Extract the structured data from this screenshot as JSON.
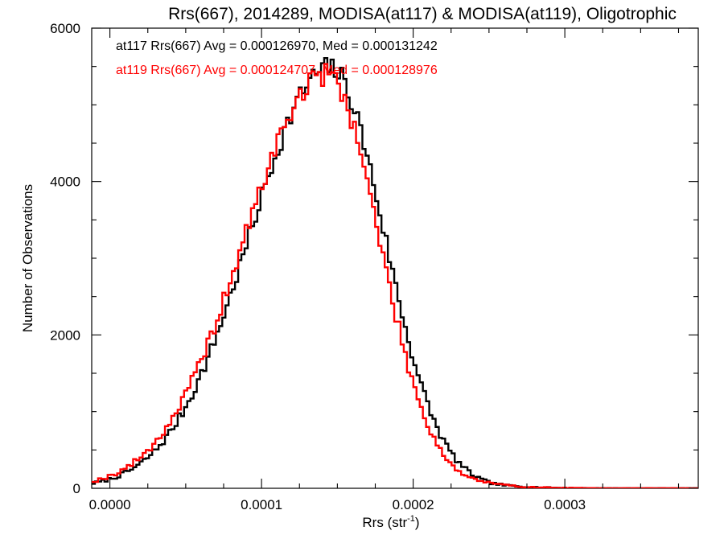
{
  "chart_data": {
    "type": "histogram",
    "title": "Rrs(667), 2014289, MODISA(at117) & MODISA(at119), Oligotrophic",
    "xlabel_main": "Rrs (str",
    "xlabel_sup": "-1",
    "xlabel_end": ")",
    "ylabel": "Number of Observations",
    "xlim": [
      -1.2e-05,
      0.000388
    ],
    "ylim": [
      0,
      6000
    ],
    "x_ticks": [
      0.0,
      0.0001,
      0.0002,
      0.0003
    ],
    "x_tick_labels": [
      "0.0000",
      "0.0001",
      "0.0002",
      "0.0003"
    ],
    "y_ticks": [
      0,
      2000,
      4000,
      6000
    ],
    "y_tick_labels": [
      "0",
      "2000",
      "4000",
      "6000"
    ],
    "grid": false,
    "legend_position": "top-left",
    "series": [
      {
        "name": "at117",
        "color": "#000000",
        "legend": "at117 Rrs(667) Avg = 0.000126970, Med = 0.000131242",
        "shape": {
          "peak_x": 0.000145,
          "peak_y": 5480,
          "left_width": 5.25e-05,
          "right_width": 3.6e-05,
          "right_tail_scale": 1.85e-05,
          "noise": 150,
          "seed": 7
        }
      },
      {
        "name": "at119",
        "color": "#ff0000",
        "legend": "at119 Rrs(667) Avg = 0.000124707, Med = 0.000128976",
        "shape": {
          "peak_x": 0.000143,
          "peak_y": 5400,
          "left_width": 5.4e-05,
          "right_width": 3.45e-05,
          "right_tail_scale": 1.85e-05,
          "noise": 150,
          "seed": 19
        }
      }
    ]
  }
}
